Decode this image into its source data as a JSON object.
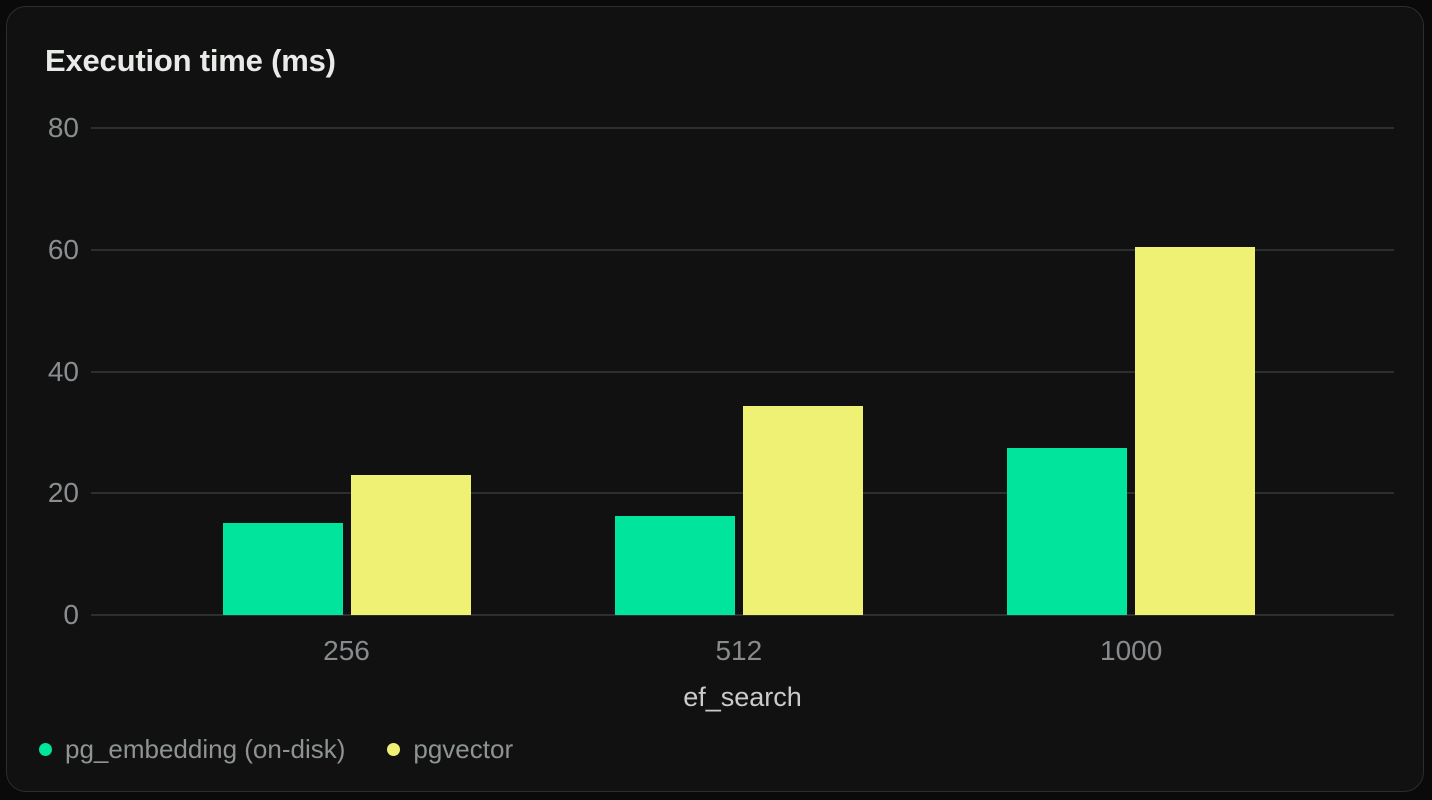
{
  "page": {
    "background": "#0a0a0a"
  },
  "card": {
    "background": "#101110",
    "border_color": "#2b2e2c"
  },
  "chart_data": {
    "type": "bar",
    "title": "Execution time (ms)",
    "xlabel": "ef_search",
    "ylabel": "",
    "categories": [
      "256",
      "512",
      "1000"
    ],
    "series": [
      {
        "name": "pg_embedding (on-disk)",
        "color": "#00e59b",
        "values": [
          15.1,
          16.3,
          27.5
        ]
      },
      {
        "name": "pgvector",
        "color": "#eff175",
        "values": [
          23,
          34.4,
          60.4
        ]
      }
    ],
    "ylim": [
      0,
      80
    ],
    "yticks": [
      0,
      20,
      40,
      60,
      80
    ],
    "grid": true,
    "grid_color": "#2d2f2e",
    "legend_position": "bottom-left",
    "text_colors": {
      "title": "#e9ebe9",
      "ytick": "#8a8e90",
      "xtick": "#888b8d",
      "xaxis_title": "#c9cccb",
      "legend": "#8f9394"
    }
  }
}
